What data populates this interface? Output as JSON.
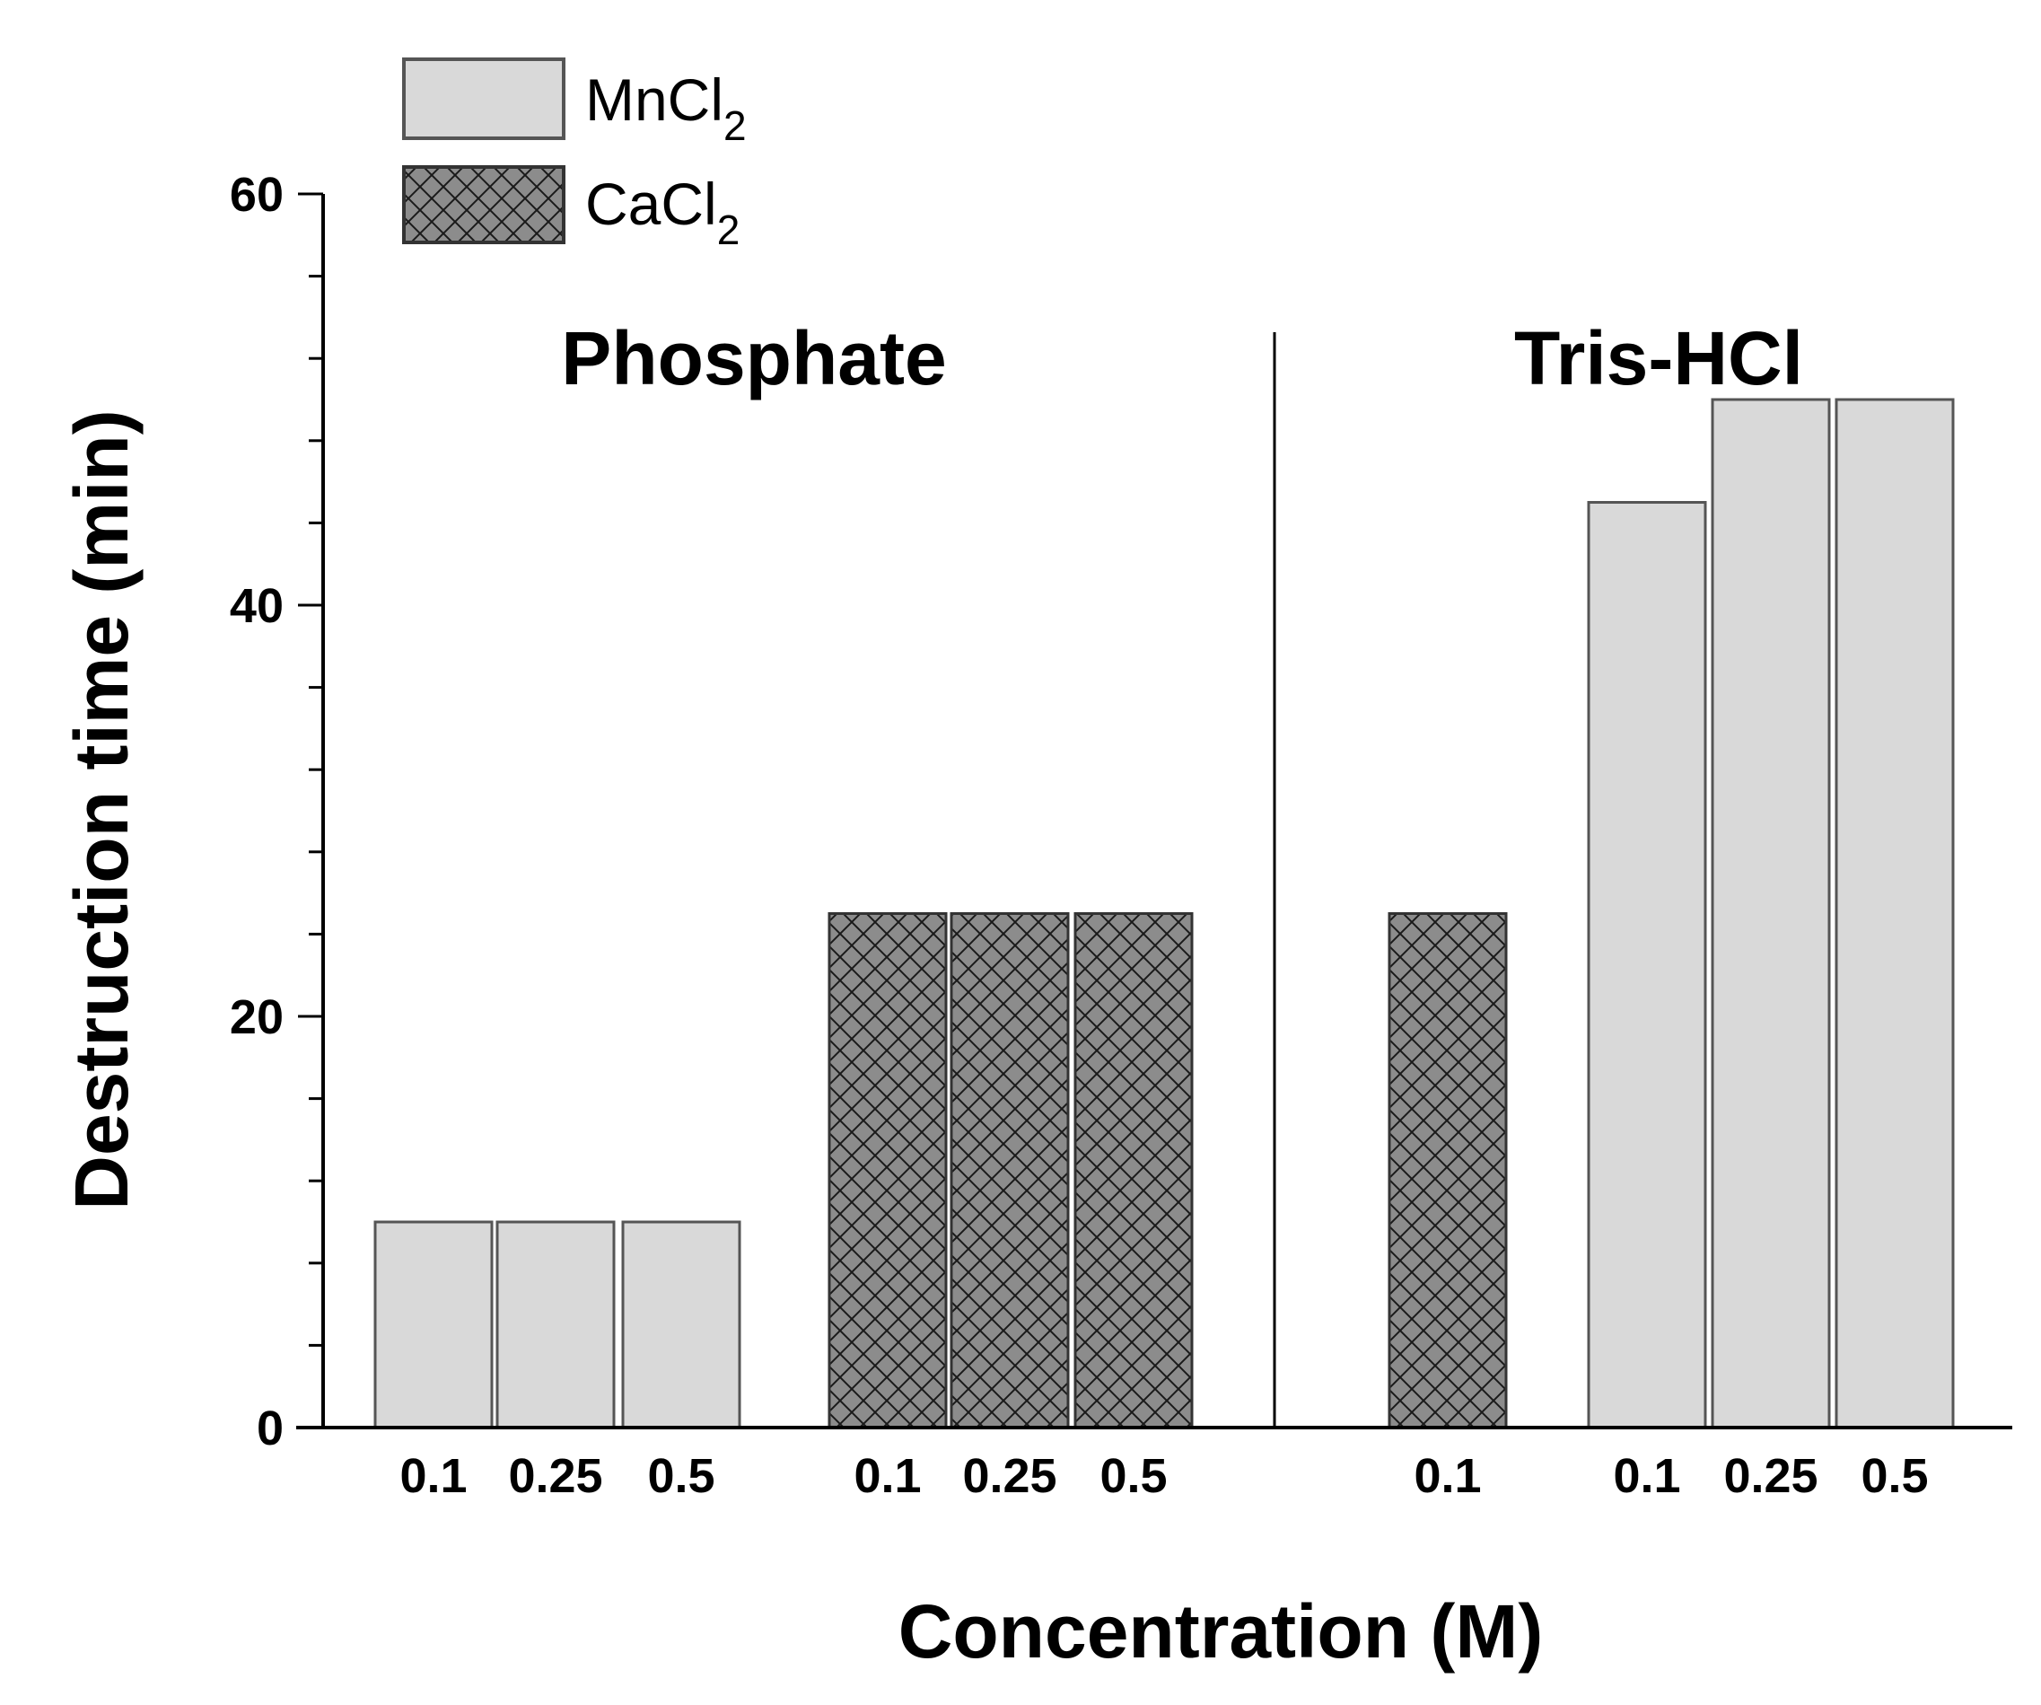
{
  "chart_data": {
    "type": "bar",
    "title": "",
    "xlabel": "Concentration (M)",
    "ylabel": "Destruction time (min)",
    "ylim": [
      0,
      60
    ],
    "yticks": [
      0,
      20,
      40,
      60
    ],
    "y_minor_step": 4,
    "groups": [
      {
        "name": "Phosphate",
        "bars": [
          {
            "series": "MnCl2",
            "category": "0.1",
            "value": 10
          },
          {
            "series": "MnCl2",
            "category": "0.25",
            "value": 10
          },
          {
            "series": "MnCl2",
            "category": "0.5",
            "value": 10
          },
          {
            "series": "CaCl2",
            "category": "0.1",
            "value": 25
          },
          {
            "series": "CaCl2",
            "category": "0.25",
            "value": 25
          },
          {
            "series": "CaCl2",
            "category": "0.5",
            "value": 25
          }
        ]
      },
      {
        "name": "Tris-HCl",
        "bars": [
          {
            "series": "CaCl2",
            "category": "0.1",
            "value": 25
          },
          {
            "series": "MnCl2",
            "category": "0.1",
            "value": 45
          },
          {
            "series": "MnCl2",
            "category": "0.25",
            "value": 50
          },
          {
            "series": "MnCl2",
            "category": "0.5",
            "value": 50
          }
        ]
      }
    ],
    "legend": {
      "position": "top-left",
      "entries": [
        {
          "series": "MnCl2",
          "base": "MnCl",
          "sub": "2",
          "fill": "#d9d9d9",
          "pattern": "solid"
        },
        {
          "series": "CaCl2",
          "base": "CaCl",
          "sub": "2",
          "fill": "#8c8c8c",
          "pattern": "crosshatch"
        }
      ]
    },
    "colors": {
      "mncl2": "#d9d9d9",
      "cacl2": "#8c8c8c",
      "border": "#555555",
      "axis": "#000000"
    }
  }
}
